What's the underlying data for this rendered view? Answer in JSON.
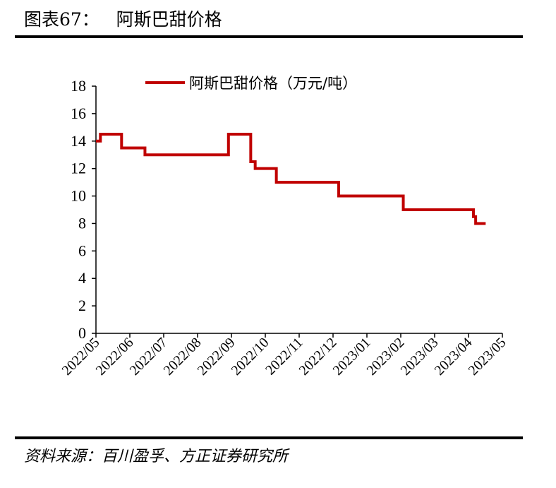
{
  "figure": {
    "title": "图表67：   阿斯巴甜价格",
    "source": "资料来源：百川盈孚、方正证券研究所"
  },
  "chart_data": {
    "type": "line",
    "title": "",
    "xlabel": "",
    "ylabel": "",
    "ylim": [
      0,
      18
    ],
    "yticks": [
      0,
      2,
      4,
      6,
      8,
      10,
      12,
      14,
      16,
      18
    ],
    "xlim": [
      "2022-05-01",
      "2023-05-01"
    ],
    "xtick_labels": [
      "2022/05",
      "2022/06",
      "2022/07",
      "2022/08",
      "2022/09",
      "2022/10",
      "2022/11",
      "2022/12",
      "2023/01",
      "2023/02",
      "2023/03",
      "2023/04",
      "2023/05"
    ],
    "grid": false,
    "legend": "top-center",
    "colors": {
      "series": "#C00000"
    },
    "series": [
      {
        "name": "阿斯巴甜价格（万元/吨）",
        "step": true,
        "points": [
          [
            "2022-05-01",
            14
          ],
          [
            "2022-05-05",
            14.5
          ],
          [
            "2022-05-24",
            13.5
          ],
          [
            "2022-06-14",
            13
          ],
          [
            "2022-08-28",
            14.5
          ],
          [
            "2022-09-17",
            12.5
          ],
          [
            "2022-09-21",
            12
          ],
          [
            "2022-10-10",
            11
          ],
          [
            "2022-12-05",
            10
          ],
          [
            "2023-02-01",
            9
          ],
          [
            "2023-04-05",
            8.5
          ],
          [
            "2023-04-07",
            8
          ],
          [
            "2023-04-16",
            8
          ]
        ]
      }
    ]
  }
}
